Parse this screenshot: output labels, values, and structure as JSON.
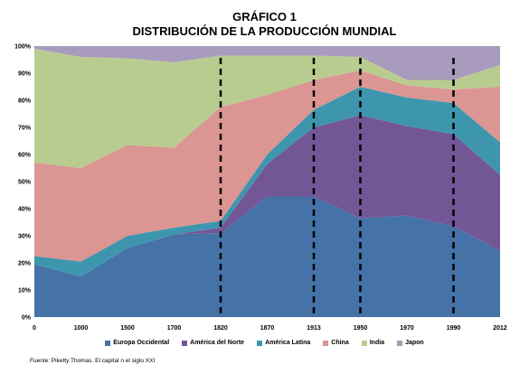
{
  "title_line1": "GRÁFICO 1",
  "title_line2": "DISTRIBUCIÓN DE LA PRODUCCIÓN MUNDIAL",
  "source": "Fuente: Piketty Thomas.  El capital n el siglo XXI",
  "chart_data": {
    "type": "area",
    "stacked": true,
    "percent": true,
    "categories": [
      "0",
      "1000",
      "1500",
      "1700",
      "1820",
      "1870",
      "1913",
      "1950",
      "1970",
      "1990",
      "2012"
    ],
    "y_ticks": [
      "0%",
      "10%",
      "20%",
      "30%",
      "40%",
      "50%",
      "60%",
      "70%",
      "80%",
      "90%",
      "100%"
    ],
    "ylim": [
      0,
      100
    ],
    "vertical_markers": [
      "1820",
      "1913",
      "1950",
      "1990"
    ],
    "legend_position": "bottom",
    "series": [
      {
        "name": "Europa Occidental",
        "color": "#4572A7",
        "values": [
          19.5,
          15,
          25.5,
          30.5,
          31,
          44.5,
          44.5,
          36.5,
          37.5,
          33.5,
          24.5
        ]
      },
      {
        "name": "América del Norte",
        "color": "#735696",
        "values": [
          0,
          0,
          0,
          0,
          2,
          12,
          25.5,
          38,
          33,
          34,
          28
        ]
      },
      {
        "name": "América Latina",
        "color": "#3D96AE",
        "values": [
          3,
          5.5,
          4.5,
          2.5,
          2.5,
          3.5,
          6.5,
          10.5,
          10.5,
          11.5,
          12
        ]
      },
      {
        "name": "China",
        "color": "#DB9592",
        "values": [
          34.5,
          34.5,
          33.5,
          29.5,
          42,
          22,
          11,
          6,
          4.5,
          5,
          20.5
        ]
      },
      {
        "name": "India",
        "color": "#B8CC90",
        "values": [
          42,
          41,
          32,
          31.5,
          19,
          14.5,
          9,
          5,
          2,
          3.5,
          8
        ]
      },
      {
        "name": "Japon",
        "color": "#A99BBD",
        "values": [
          1,
          4,
          4.5,
          6,
          3.5,
          3.5,
          3.5,
          4,
          12.5,
          12.5,
          7
        ]
      }
    ]
  }
}
